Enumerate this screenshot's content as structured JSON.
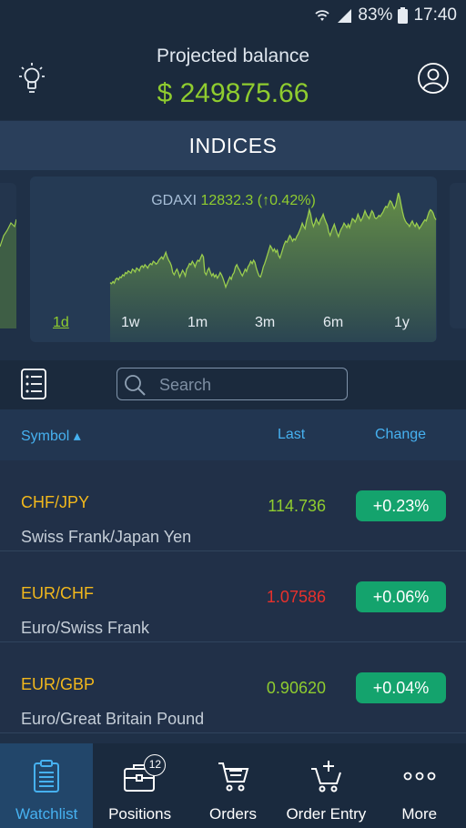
{
  "status_bar": {
    "battery": "83%",
    "time": "17:40"
  },
  "header": {
    "title": "Projected balance",
    "balance": "$ 249875.66"
  },
  "section": {
    "title": "INDICES"
  },
  "chart_card": {
    "symbol": "GDAXI",
    "value": "12832.3 (↑0.42%)",
    "ranges": [
      "1d",
      "1w",
      "1m",
      "3m",
      "6m",
      "1y"
    ],
    "active_range": "1d"
  },
  "chart_data": {
    "type": "area",
    "color": "#9acd4e",
    "values": [
      12,
      10,
      14,
      11,
      18,
      20,
      17,
      22,
      21,
      26,
      24,
      30,
      28,
      33,
      31,
      29,
      36,
      34,
      31,
      38,
      36,
      33,
      40,
      42,
      39,
      44,
      41,
      38,
      43,
      46,
      44,
      50,
      48,
      45,
      47,
      52,
      55,
      58,
      54,
      60,
      66,
      58,
      52,
      48,
      42,
      30,
      26,
      32,
      36,
      30,
      22,
      28,
      34,
      30,
      24,
      36,
      40,
      46,
      44,
      50,
      46,
      40,
      48,
      52,
      50,
      56,
      62,
      58,
      30,
      26,
      34,
      38,
      30,
      24,
      28,
      22,
      26,
      20,
      24,
      30,
      26,
      20,
      12,
      4,
      10,
      16,
      22,
      18,
      26,
      30,
      40,
      44,
      38,
      34,
      28,
      24,
      30,
      36,
      32,
      40,
      44,
      50,
      46,
      52,
      48,
      38,
      30,
      24,
      22,
      30,
      40,
      46,
      54,
      62,
      70,
      78,
      74,
      68,
      72,
      66,
      70,
      60,
      56,
      64,
      72,
      80,
      86,
      84,
      90,
      96,
      92,
      86,
      90,
      88,
      94,
      98,
      104,
      110,
      118,
      112,
      108,
      122,
      130,
      142,
      134,
      120,
      112,
      118,
      126,
      120,
      116,
      124,
      128,
      134,
      126,
      120,
      114,
      102,
      96,
      104,
      110,
      116,
      108,
      100,
      94,
      102,
      108,
      112,
      118,
      114,
      110,
      116,
      110,
      118,
      126,
      124,
      120,
      126,
      134,
      128,
      122,
      126,
      132,
      140,
      134,
      130,
      126,
      134,
      140,
      136,
      128,
      126,
      128,
      132,
      130,
      134,
      138,
      144,
      148,
      146,
      152,
      158,
      156,
      150,
      144,
      148,
      160,
      172,
      164,
      150,
      138,
      128,
      122,
      118,
      116,
      112,
      118,
      122,
      116,
      112,
      118,
      114,
      108,
      112,
      116,
      120,
      124,
      122,
      130,
      138,
      142,
      140,
      136,
      128,
      124
    ]
  },
  "search": {
    "placeholder": "Search"
  },
  "columns": {
    "symbol": "Symbol ▴",
    "last": "Last",
    "change": "Change"
  },
  "rows": [
    {
      "symbol": "CHF/JPY",
      "description": "Swiss Frank/Japan Yen",
      "last": "114.736",
      "last_color": "#8fcc2f",
      "change": "+0.23%"
    },
    {
      "symbol": "EUR/CHF",
      "description": "Euro/Swiss Frank",
      "last": "1.07586",
      "last_color": "#e8312c",
      "change": "+0.06%"
    },
    {
      "symbol": "EUR/GBP",
      "description": "Euro/Great Britain Pound",
      "last": "0.90620",
      "last_color": "#8fcc2f",
      "change": "+0.04%"
    }
  ],
  "nav": {
    "items": [
      {
        "label": "Watchlist",
        "icon": "clipboard-icon"
      },
      {
        "label": "Positions",
        "icon": "briefcase-icon",
        "badge": "12"
      },
      {
        "label": "Orders",
        "icon": "cart-list-icon"
      },
      {
        "label": "Order Entry",
        "icon": "cart-plus-icon"
      },
      {
        "label": "More",
        "icon": "more-icon"
      }
    ]
  }
}
